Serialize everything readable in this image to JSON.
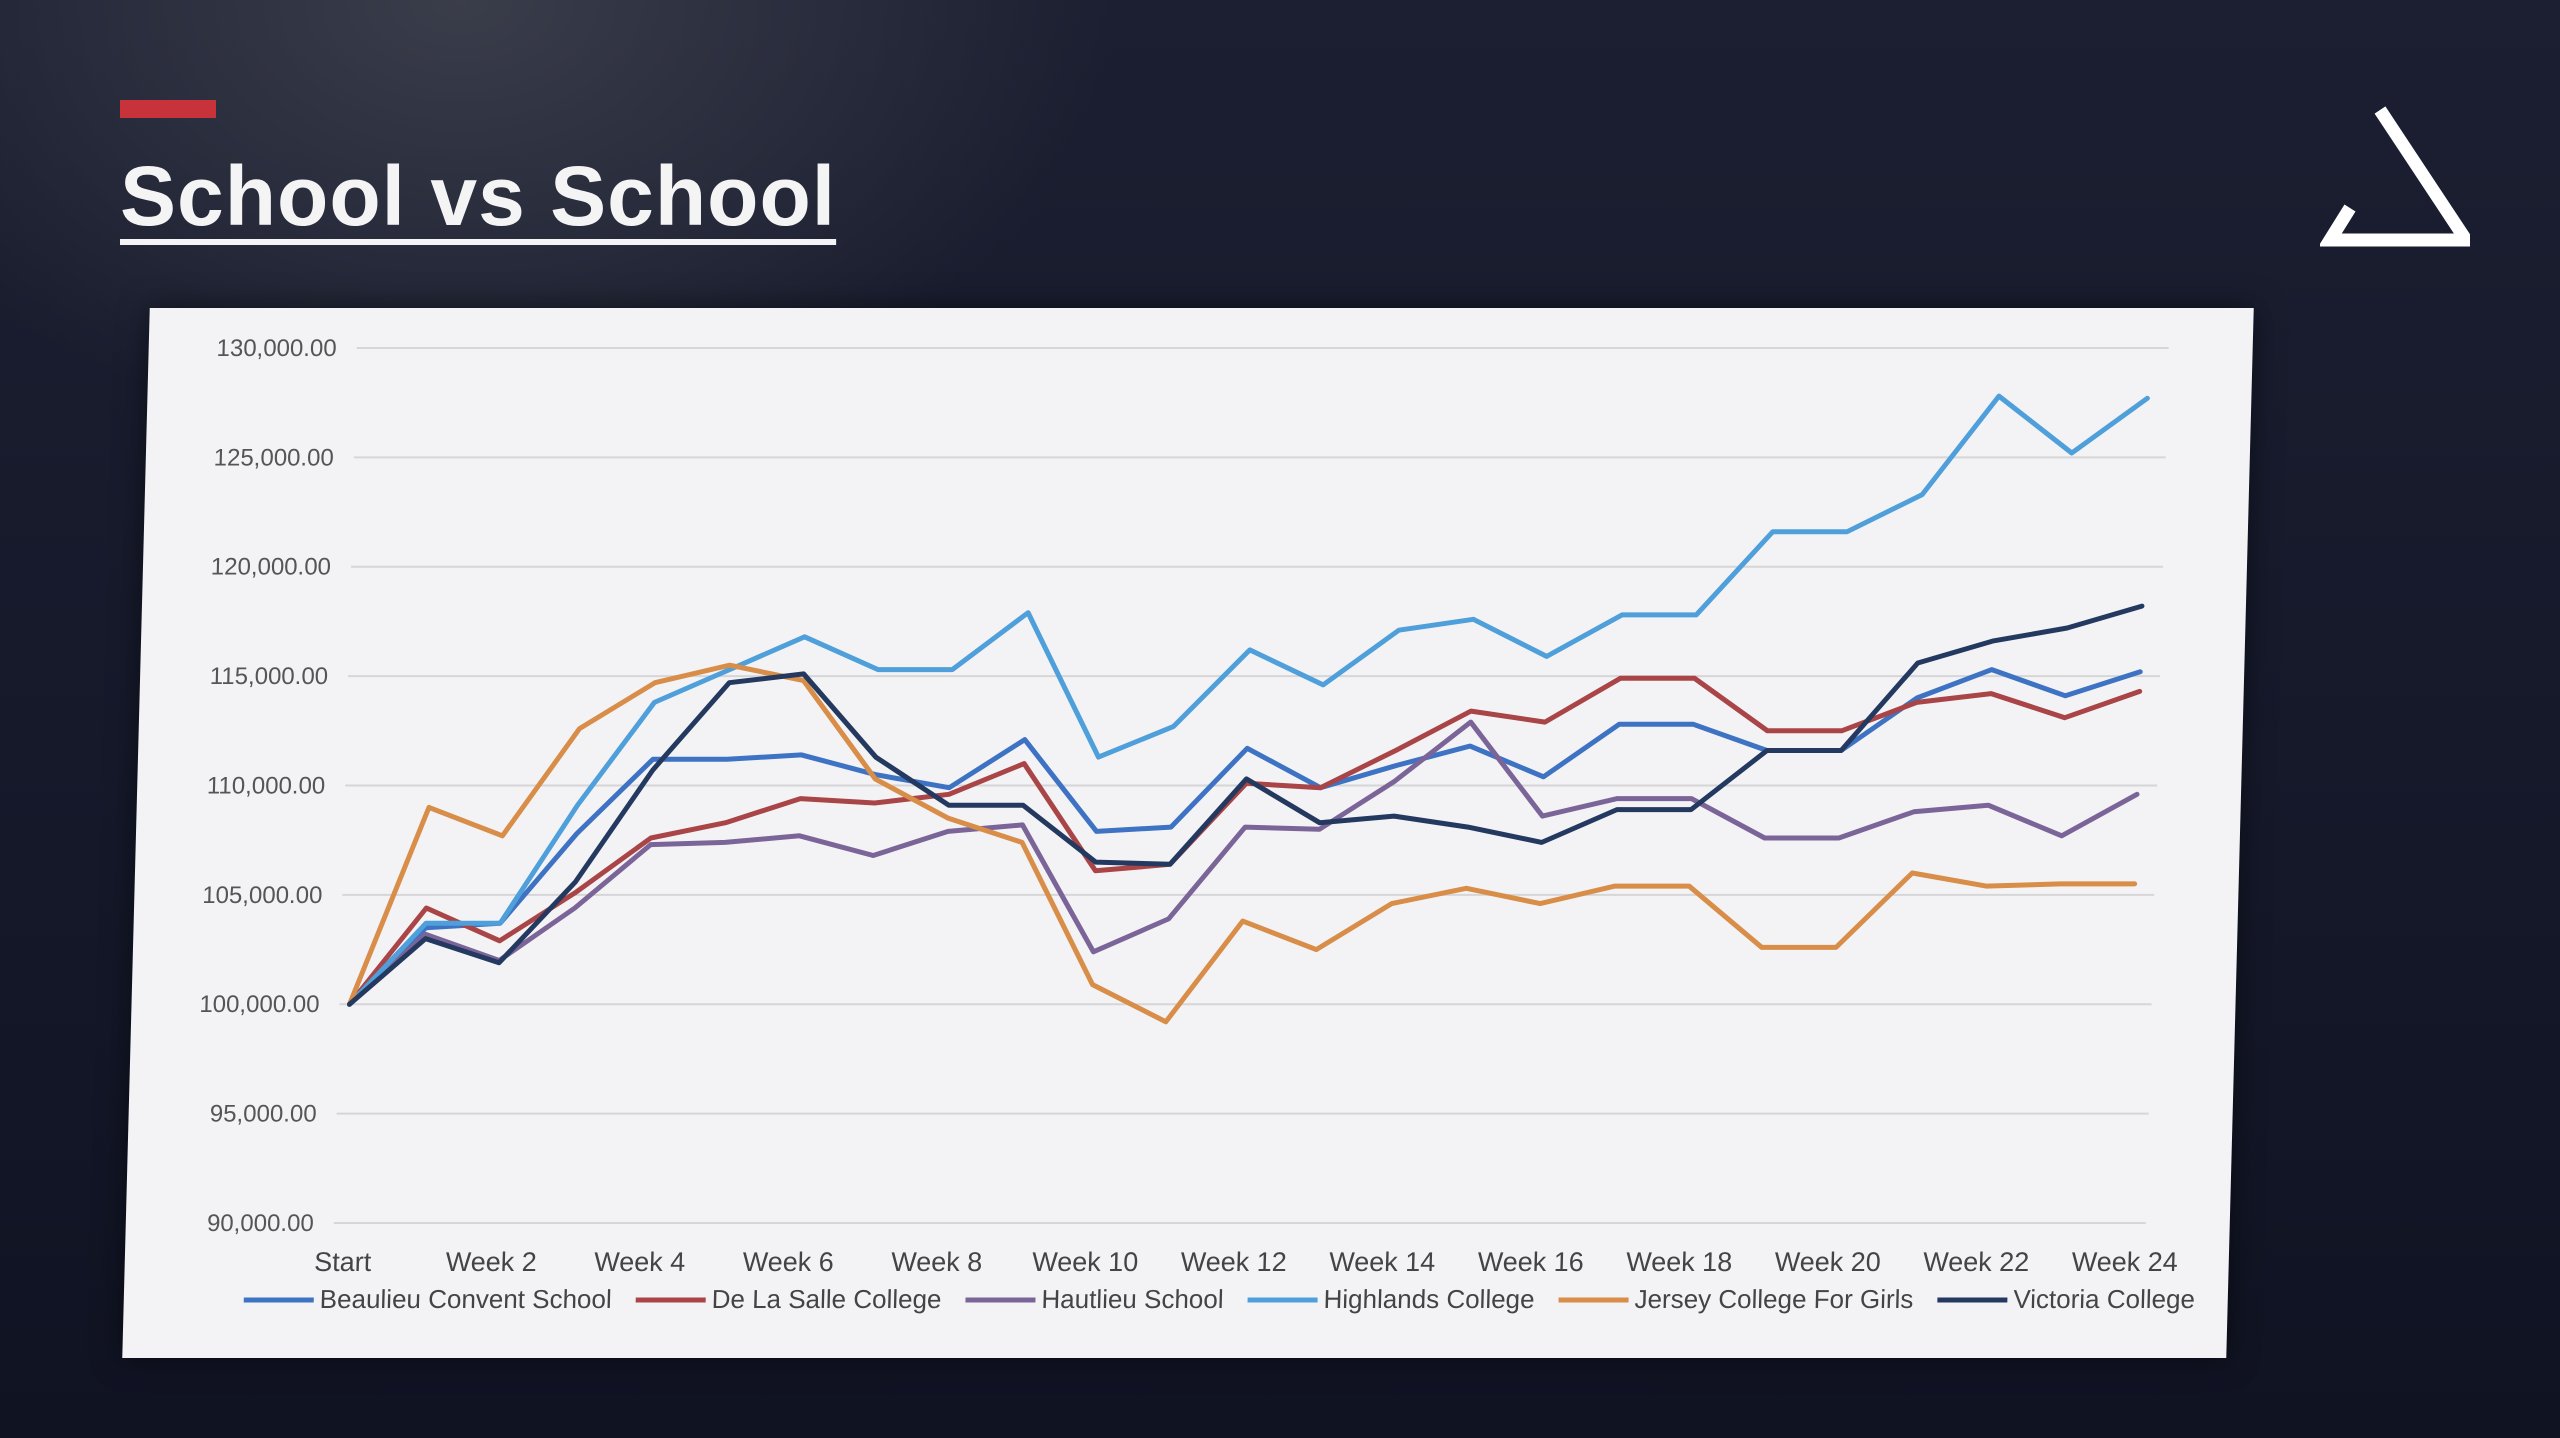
{
  "slide": {
    "title": "School vs School",
    "logo_icon": "triangle-logo-icon"
  },
  "colors": {
    "accent": "#c8323a",
    "Beaulieu Convent School": "#3e73c4",
    "De La Salle College": "#a94447",
    "Hautlieu School": "#7b6598",
    "Highlands College": "#4f9fdb",
    "Jersey College For Girls": "#d88d48",
    "Victoria College": "#24395f"
  },
  "chart_data": {
    "type": "line",
    "title": "",
    "xlabel": "",
    "ylabel": "",
    "ylim": [
      90000,
      130000
    ],
    "yticks": [
      "130,000.00",
      "125,000.00",
      "120,000.00",
      "115,000.00",
      "110,000.00",
      "105,000.00",
      "100,000.00",
      "95,000.00",
      "90,000.00"
    ],
    "ytick_values": [
      130000,
      125000,
      120000,
      115000,
      110000,
      105000,
      100000,
      95000,
      90000
    ],
    "grid": true,
    "legend_position": "bottom",
    "x": [
      "Start",
      "Week 1",
      "Week 2",
      "Week 3",
      "Week 4",
      "Week 5",
      "Week 6",
      "Week 7",
      "Week 8",
      "Week 9",
      "Week 10",
      "Week 11",
      "Week 12",
      "Week 13",
      "Week 14",
      "Week 15",
      "Week 16",
      "Week 17",
      "Week 18",
      "Week 19",
      "Week 20",
      "Week 21",
      "Week 22",
      "Week 23",
      "Week 24"
    ],
    "x_tick_labels": [
      "Start",
      "Week 2",
      "Week 4",
      "Week 6",
      "Week 8",
      "Week 10",
      "Week 12",
      "Week 14",
      "Week 16",
      "Week 18",
      "Week 20",
      "Week 22",
      "Week 24"
    ],
    "series": [
      {
        "name": "Beaulieu Convent School",
        "values": [
          100000,
          103500,
          103700,
          107800,
          111200,
          111200,
          111400,
          110500,
          109900,
          112100,
          107900,
          108100,
          111700,
          109900,
          110900,
          111800,
          110400,
          112800,
          112800,
          111600,
          111600,
          114000,
          115300,
          114100,
          115200
        ]
      },
      {
        "name": "De La Salle College",
        "values": [
          100000,
          104400,
          102900,
          105100,
          107600,
          108300,
          109400,
          109200,
          109600,
          111000,
          106100,
          106400,
          110100,
          109900,
          111600,
          113400,
          112900,
          114900,
          114900,
          112500,
          112500,
          113800,
          114200,
          113100,
          114300
        ]
      },
      {
        "name": "Hautlieu School",
        "values": [
          100000,
          103200,
          102000,
          104400,
          107300,
          107400,
          107700,
          106800,
          107900,
          108200,
          102400,
          103900,
          108100,
          108000,
          110200,
          112900,
          108600,
          109400,
          109400,
          107600,
          107600,
          108800,
          109100,
          107700,
          109600
        ]
      },
      {
        "name": "Highlands College",
        "values": [
          100000,
          103700,
          103700,
          109100,
          113800,
          115300,
          116800,
          115300,
          115300,
          117900,
          111300,
          112700,
          116200,
          114600,
          117100,
          117600,
          115900,
          117800,
          117800,
          121600,
          121600,
          123300,
          127800,
          125200,
          127700
        ]
      },
      {
        "name": "Jersey College For Girls",
        "values": [
          100000,
          109000,
          107700,
          112600,
          114700,
          115500,
          114800,
          110300,
          108500,
          107400,
          100900,
          99200,
          103800,
          102500,
          104600,
          105300,
          104600,
          105400,
          105400,
          102600,
          102600,
          106000,
          105400,
          105500,
          105500
        ]
      },
      {
        "name": "Victoria College",
        "values": [
          100000,
          103000,
          101900,
          105600,
          110700,
          114700,
          115100,
          111300,
          109100,
          109100,
          106500,
          106400,
          110300,
          108300,
          108600,
          108100,
          107400,
          108900,
          108900,
          111600,
          111600,
          115600,
          116600,
          117200,
          118200
        ]
      }
    ]
  }
}
